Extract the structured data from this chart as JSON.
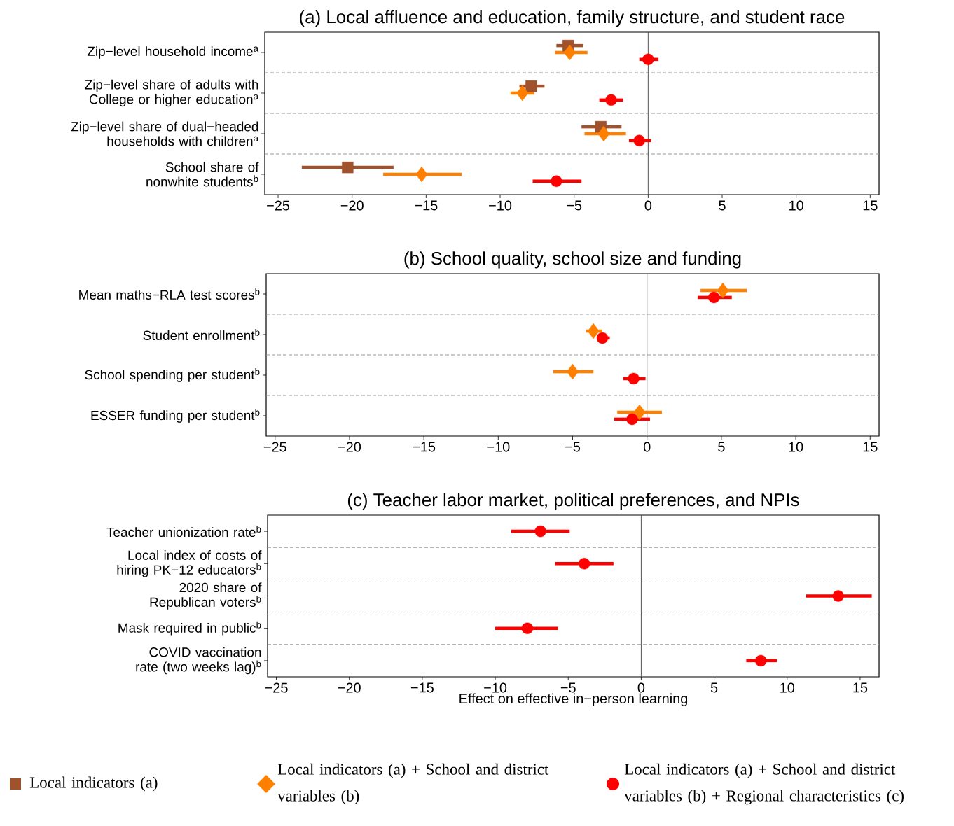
{
  "chart_data": [
    {
      "type": "scatter",
      "orientation": "horizontal",
      "title": "(a) Local affluence and education, family structure, and student race",
      "categories": [
        "Zip−level household income$^{a}$",
        "Zip−level share of adults with College or higher education$^{a}$",
        "Zip−level share of dual−headed households with children$^{a}$",
        "School share of nonwhite students$^{b}$"
      ],
      "series": [
        {
          "name": "Local indicators (a)",
          "color": "#a0522d",
          "marker": "square",
          "values": [
            -5.4,
            -7.9,
            -3.2,
            -20.3
          ],
          "errors": [
            [
              -6.2,
              -4.4
            ],
            [
              -8.7,
              -7.0
            ],
            [
              -4.5,
              -1.8
            ],
            [
              -23.4,
              -17.2
            ]
          ]
        },
        {
          "name": "Local indicators (a) + School and district variables (b)",
          "color": "#ff8000",
          "marker": "diamond",
          "values": [
            -5.3,
            -8.5,
            -3.0,
            -15.3
          ],
          "errors": [
            [
              -6.3,
              -4.1
            ],
            [
              -9.3,
              -7.7
            ],
            [
              -4.3,
              -1.5
            ],
            [
              -17.9,
              -12.6
            ]
          ]
        },
        {
          "name": "Local indicators (a) + School and district variables (b) + Regional characteristics (c)",
          "color": "#ff0000",
          "marker": "circle",
          "values": [
            0.0,
            -2.5,
            -0.6,
            -6.2
          ],
          "errors": [
            [
              -0.6,
              0.7
            ],
            [
              -3.3,
              -1.7
            ],
            [
              -1.3,
              0.2
            ],
            [
              -7.8,
              -4.5
            ]
          ]
        }
      ],
      "xlim": [
        -25.9,
        15.6
      ],
      "xticks": [
        {
          "value": -25,
          "label": "−25"
        },
        {
          "value": -20,
          "label": "−20"
        },
        {
          "value": -15,
          "label": "−15"
        },
        {
          "value": -10,
          "label": "−10"
        },
        {
          "value": -5,
          "label": "−5"
        },
        0,
        5,
        10,
        15
      ],
      "ref_lines": [
        {
          "axis": "x",
          "value": 0,
          "color": "#555555"
        }
      ],
      "legend": "bottom"
    },
    {
      "type": "scatter",
      "orientation": "horizontal",
      "title": "(b) School quality, school size and funding",
      "categories": [
        "Mean maths−RLA test scores$^{b}$",
        "Student enrollment$^{b}$",
        "School spending per student$^{b}$",
        "ESSER funding per student$^{b}$"
      ],
      "series": [
        {
          "color": "#ff8000",
          "marker": "diamond",
          "values": [
            5.1,
            -3.6,
            -5.0,
            -0.5
          ],
          "errors": [
            [
              3.6,
              6.7
            ],
            [
              -4.1,
              -3.0
            ],
            [
              -6.3,
              -3.6
            ],
            [
              -2.0,
              1.0
            ]
          ]
        },
        {
          "color": "#ff0000",
          "marker": "circle",
          "values": [
            4.5,
            -3.0,
            -0.9,
            -1.0
          ],
          "errors": [
            [
              3.4,
              5.7
            ],
            [
              -3.3,
              -2.5
            ],
            [
              -1.6,
              -0.1
            ],
            [
              -2.2,
              0.2
            ]
          ]
        }
      ],
      "xlim": [
        -25.6,
        15.6
      ],
      "xticks": [
        {
          "value": -25,
          "label": "−25"
        },
        {
          "value": -20,
          "label": "−20"
        },
        {
          "value": -15,
          "label": "−15"
        },
        {
          "value": -10,
          "label": "−10"
        },
        {
          "value": -5,
          "label": "−5"
        },
        0,
        5,
        10,
        15
      ],
      "ref_lines": [
        {
          "axis": "x",
          "value": 0,
          "color": "#555555"
        }
      ]
    },
    {
      "type": "scatter",
      "orientation": "horizontal",
      "title": "(c) Teacher labor market, political preferences, and NPIs",
      "xlabel": "Effect on effective in−person learning",
      "categories": [
        "Teacher unionization rate$^{b}$",
        "Local index of costs of hiring PK−12 educators$^{b}$",
        "2020 share of Republican voters$^{b}$",
        "Mask required in public$^{b}$",
        "COVID vaccination rate (two weeks lag)$^{b}$"
      ],
      "series": [
        {
          "color": "#ff0000",
          "marker": "circle",
          "values": [
            -6.9,
            -3.9,
            13.5,
            -7.8,
            8.2
          ],
          "errors": [
            [
              -8.9,
              -4.9
            ],
            [
              -5.9,
              -1.9
            ],
            [
              11.3,
              15.8
            ],
            [
              -10.0,
              -5.7
            ],
            [
              7.2,
              9.3
            ]
          ]
        }
      ],
      "xlim": [
        -25.6,
        16.3
      ],
      "xticks": [
        {
          "value": -25,
          "label": "−25"
        },
        {
          "value": -20,
          "label": "−20"
        },
        {
          "value": -15,
          "label": "−15"
        },
        {
          "value": -10,
          "label": "−10"
        },
        {
          "value": -5,
          "label": "−5"
        },
        0,
        5,
        10,
        15
      ],
      "ref_lines": [
        {
          "axis": "x",
          "value": 0,
          "color": "#555555"
        }
      ]
    }
  ]
}
